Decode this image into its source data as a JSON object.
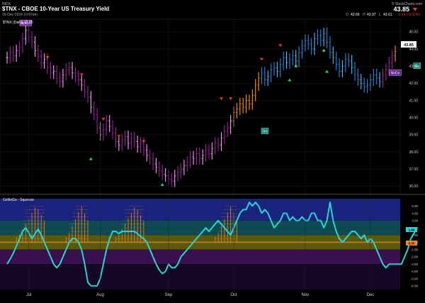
{
  "header": {
    "exchange": "INDX",
    "title": "$TNX - CBOE 10-Year US Treasury Yield",
    "date": "16-Dec-2024 10:57am",
    "brand": "© StockCharts.com",
    "last_price": "43.85",
    "open_label": "O",
    "open": "43.69",
    "high_label": "H",
    "high": "43.97",
    "low_label": "L",
    "low": "43.61",
    "change": "-0.14 (-0.32%)"
  },
  "price_panel": {
    "legend": "$TNX (Daily) 43.85",
    "last_price_tag": "43.85",
    "y_ticks": [
      45.0,
      44.0,
      43.0,
      42.0,
      41.0,
      40.0,
      39.0,
      38.0,
      37.0,
      36.0
    ],
    "y_tick_labels": [
      "45.00",
      "44.00",
      "43.00",
      "42.00",
      "41.00",
      "40.00",
      "39.00",
      "38.00",
      "37.00",
      "36.00"
    ],
    "ylim": [
      35.6,
      45.7
    ],
    "annotations": [
      {
        "label": "NoGo",
        "index": 6,
        "value": 45.5,
        "fill": "#6a1b9a"
      },
      {
        "label": "Go",
        "index": 83,
        "value": 39.2,
        "fill": "#00897b"
      },
      {
        "label": "NoGo",
        "index": 125,
        "value": 42.6,
        "fill": "#6a1b9a"
      },
      {
        "label": "Go",
        "index": 132,
        "value": 43.0,
        "fill": "#00897b"
      }
    ]
  },
  "oscillator_panel": {
    "legend": "GoNoGo - Squeeze",
    "y_ticks": [
      5,
      4,
      3,
      2,
      1,
      0,
      -1,
      -2,
      -3,
      -4,
      -5,
      -6
    ],
    "y_tick_labels": [
      "5.00",
      "4.00",
      "3.00",
      "2.00",
      "1.00",
      "0.00",
      "-1.00",
      "-2.00",
      "-3.00",
      "-4.00",
      "-5.00",
      "-6.00"
    ],
    "current_value_tag": "1.88",
    "zero_tag": "0.00",
    "ylim": [
      -6.5,
      6.0
    ]
  },
  "x_axis": {
    "months": [
      {
        "label": "Jul",
        "index": 7
      },
      {
        "label": "Aug",
        "index": 30
      },
      {
        "label": "Sep",
        "index": 52
      },
      {
        "label": "Oct",
        "index": 73
      },
      {
        "label": "Nov",
        "index": 96
      },
      {
        "label": "Dec",
        "index": 117
      }
    ]
  },
  "colors": {
    "nogo_strong": "#a020a0",
    "nogo_weak": "#f3a6f3",
    "go_strong": "#1e88e5",
    "go_weak": "#4fc3f7",
    "neutral": "#ff9800",
    "osc_line": "#29d6d6",
    "zero_line": "#f08a24",
    "squeeze": "#e07b1a",
    "go_marker": "#2ecc71",
    "nogo_marker": "#e53935",
    "zone_top": "#1a237e",
    "zone_upper": "#0d4a52",
    "zone_mid": "#5a5a0a",
    "zone_lower": "#3a1050",
    "zone_bottom": "#150825"
  },
  "chart_data": [
    {
      "type": "ohlc",
      "title": "$TNX - CBOE 10-Year US Treasury Yield",
      "series_label": "$TNX (Daily) 43.85",
      "ylim": [
        35.6,
        45.7
      ],
      "closes": [
        43.5,
        43.8,
        43.6,
        43.9,
        44.1,
        44.6,
        45.1,
        44.7,
        44.4,
        43.9,
        43.6,
        43.2,
        43.4,
        42.9,
        42.6,
        42.7,
        42.3,
        42.1,
        42.5,
        42.8,
        42.9,
        42.6,
        42.4,
        42.2,
        41.9,
        41.5,
        41.2,
        40.6,
        40.2,
        39.4,
        39.0,
        39.3,
        39.8,
        39.5,
        39.1,
        38.6,
        38.4,
        38.7,
        38.9,
        38.5,
        38.8,
        38.6,
        38.3,
        38.5,
        38.1,
        37.8,
        37.6,
        37.3,
        37.1,
        36.9,
        36.7,
        36.6,
        36.4,
        36.3,
        36.6,
        36.8,
        37.0,
        37.2,
        37.4,
        37.7,
        37.6,
        37.9,
        37.6,
        37.8,
        38.1,
        37.9,
        38.2,
        38.5,
        38.4,
        38.8,
        39.2,
        39.4,
        39.8,
        40.3,
        40.5,
        40.8,
        40.6,
        41.0,
        40.8,
        41.3,
        41.9,
        42.3,
        42.6,
        42.2,
        42.4,
        42.8,
        42.9,
        42.7,
        43.1,
        43.5,
        43.2,
        43.4,
        43.6,
        43.3,
        43.8,
        44.2,
        44.5,
        44.3,
        44.0,
        44.6,
        44.8,
        44.5,
        44.9,
        44.4,
        43.8,
        43.5,
        43.1,
        42.7,
        43.0,
        43.4,
        43.3,
        42.9,
        42.5,
        42.2,
        42.0,
        41.8,
        41.9,
        42.2,
        42.5,
        42.3,
        42.1,
        42.5,
        42.8,
        43.2,
        43.6,
        43.85
      ],
      "marker_up": [
        {
          "index": 27,
          "value": 37.6
        },
        {
          "index": 50,
          "value": 36.1
        },
        {
          "index": 91,
          "value": 42.2
        },
        {
          "index": 103,
          "value": 42.7
        }
      ],
      "marker_down": [
        {
          "index": 13,
          "value": 43.5
        },
        {
          "index": 24,
          "value": 42.5
        },
        {
          "index": 31,
          "value": 39.9
        },
        {
          "index": 36,
          "value": 38.9
        },
        {
          "index": 44,
          "value": 38.6
        },
        {
          "index": 69,
          "value": 41.1
        },
        {
          "index": 72,
          "value": 41.1
        },
        {
          "index": 82,
          "value": 43.4
        },
        {
          "index": 88,
          "value": 44.2
        }
      ]
    },
    {
      "type": "line",
      "title": "GoNoGo - Squeeze",
      "ylim": [
        -6.5,
        6.0
      ],
      "values": [
        -3,
        -2.3,
        -1.5,
        -0.5,
        0.5,
        1.5,
        2,
        1.3,
        0.5,
        1.2,
        1.8,
        1,
        0,
        -1,
        -2,
        -3,
        -3.5,
        -3,
        -2,
        -1,
        0,
        0.5,
        0.5,
        0,
        -1,
        -3,
        -5.5,
        -6,
        -6,
        -6,
        -5,
        -3,
        -1,
        0.5,
        1.5,
        1.5,
        1.2,
        1.5,
        1.5,
        1.5,
        1.5,
        1.5,
        1.2,
        0.8,
        0.5,
        0,
        -1,
        -2,
        -3,
        -3.8,
        -4.3,
        -4,
        -3,
        -3.5,
        -3.5,
        -3,
        -2,
        -1.5,
        -1,
        -0.5,
        0,
        0.5,
        1,
        1.5,
        2,
        1.5,
        2,
        2.5,
        3,
        2.5,
        2,
        1.5,
        1,
        2,
        3,
        4,
        4.5,
        4.5,
        5.5,
        5,
        5.5,
        5,
        4,
        4.5,
        4,
        3,
        2,
        2.5,
        3,
        4,
        4,
        3,
        3.5,
        3,
        3,
        3.5,
        3,
        3,
        4,
        4,
        3,
        3,
        2,
        3,
        5.5,
        3,
        1.5,
        0.5,
        0,
        0.5,
        1,
        1.5,
        1.5,
        1,
        0.5,
        1,
        0,
        0.5,
        0,
        -1,
        -2,
        -3,
        -3.5,
        -3,
        -3,
        -3,
        -3,
        -3,
        -2,
        -1,
        0.5,
        1.2,
        1.88
      ],
      "squeeze_groups": [
        {
          "start": 3,
          "end": 12,
          "peak": 5.0
        },
        {
          "start": 19,
          "end": 26,
          "peak": 5.0
        },
        {
          "start": 35,
          "end": 44,
          "peak": 5.0
        },
        {
          "start": 67,
          "end": 74,
          "peak": 5.0
        }
      ]
    }
  ]
}
